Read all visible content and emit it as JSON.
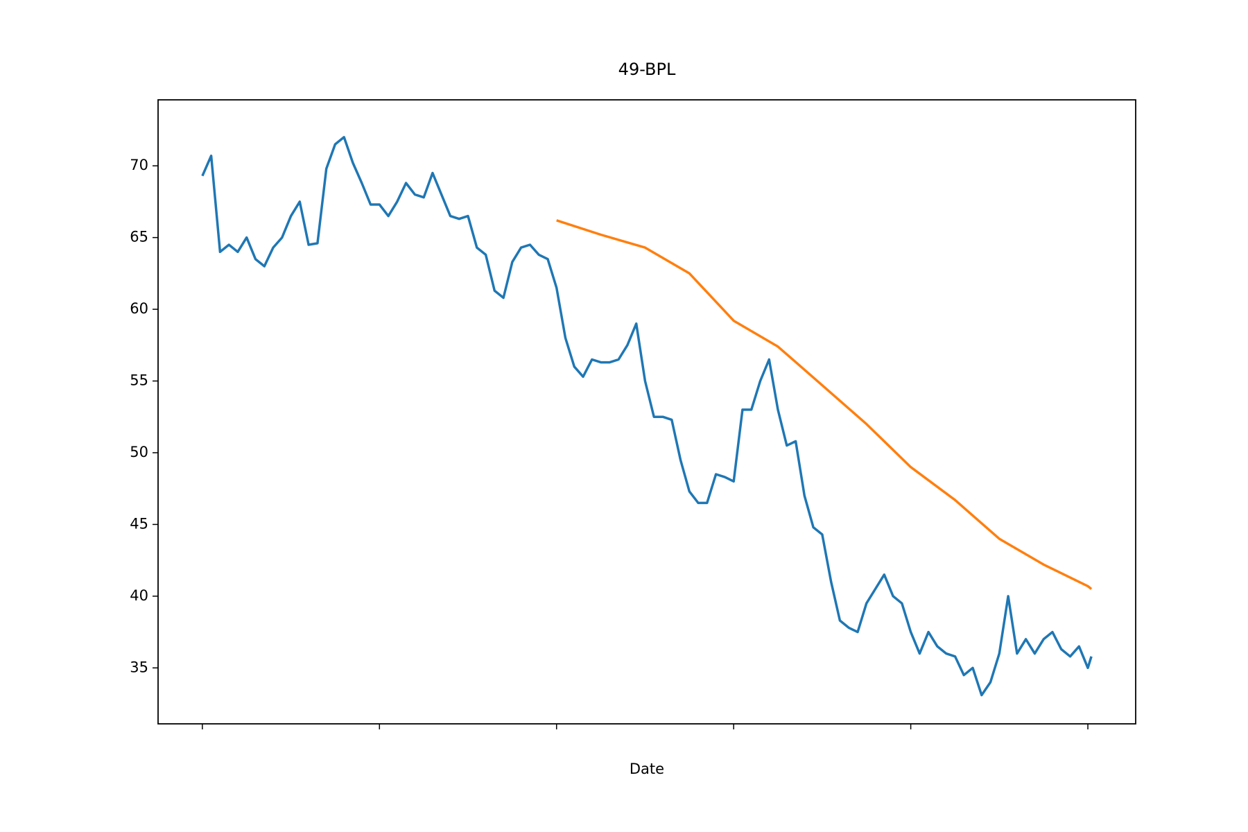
{
  "chart_data": {
    "type": "line",
    "title": "49-BPL",
    "x_label": "Date",
    "xlim": [
      -25,
      527
    ],
    "ylim": [
      31.1,
      74.6
    ],
    "xticks": [
      0,
      100,
      200,
      300,
      400,
      500
    ],
    "yticks": [
      35,
      40,
      45,
      50,
      55,
      60,
      65,
      70
    ],
    "series": [
      {
        "color": "#1f77b4",
        "x": [
          0,
          5,
          10,
          15,
          20,
          25,
          30,
          35,
          40,
          45,
          50,
          55,
          60,
          65,
          70,
          75,
          80,
          85,
          90,
          95,
          100,
          105,
          110,
          115,
          120,
          125,
          130,
          135,
          140,
          145,
          150,
          155,
          160,
          165,
          170,
          175,
          180,
          185,
          190,
          195,
          200,
          205,
          210,
          215,
          220,
          225,
          230,
          235,
          240,
          245,
          250,
          255,
          260,
          265,
          270,
          275,
          280,
          285,
          290,
          295,
          300,
          305,
          310,
          315,
          320,
          325,
          330,
          335,
          340,
          345,
          350,
          355,
          360,
          365,
          370,
          375,
          380,
          385,
          390,
          395,
          400,
          405,
          410,
          415,
          420,
          425,
          430,
          435,
          440,
          445,
          450,
          455,
          460,
          465,
          470,
          475,
          480,
          485,
          490,
          495,
          500,
          502
        ],
        "values": [
          69.3,
          70.7,
          64,
          64.5,
          64,
          65,
          63.5,
          63,
          64.3,
          65,
          66.5,
          67.5,
          64.5,
          64.6,
          69.8,
          71.5,
          72,
          70.2,
          68.8,
          67.3,
          67.3,
          66.5,
          67.5,
          68.8,
          68,
          67.8,
          69.5,
          68,
          66.5,
          66.3,
          66.5,
          64.3,
          63.8,
          61.3,
          60.8,
          63.3,
          64.3,
          64.5,
          63.8,
          63.5,
          61.5,
          58,
          56,
          55.3,
          56.5,
          56.3,
          56.3,
          56.5,
          57.5,
          59,
          55,
          52.5,
          52.5,
          52.3,
          49.5,
          47.3,
          46.5,
          46.5,
          48.5,
          48.3,
          48,
          53,
          53,
          55,
          56.5,
          53,
          50.5,
          50.8,
          47,
          44.8,
          44.3,
          41,
          38.3,
          37.8,
          37.5,
          39.5,
          40.5,
          41.5,
          40,
          39.5,
          37.5,
          36,
          37.5,
          36.5,
          36,
          35.8,
          34.5,
          35,
          33.1,
          34,
          36,
          40,
          36,
          37,
          36,
          37,
          37.5,
          36.3,
          35.8,
          36.5,
          35,
          35.8
        ]
      },
      {
        "color": "#ff7f0e",
        "x": [
          200,
          225,
          250,
          275,
          300,
          325,
          350,
          375,
          400,
          425,
          450,
          475,
          500,
          502
        ],
        "values": [
          66.2,
          65.2,
          64.3,
          62.5,
          59.2,
          57.4,
          54.7,
          52,
          49,
          46.7,
          44,
          42.2,
          40.7,
          40.5
        ]
      }
    ]
  }
}
